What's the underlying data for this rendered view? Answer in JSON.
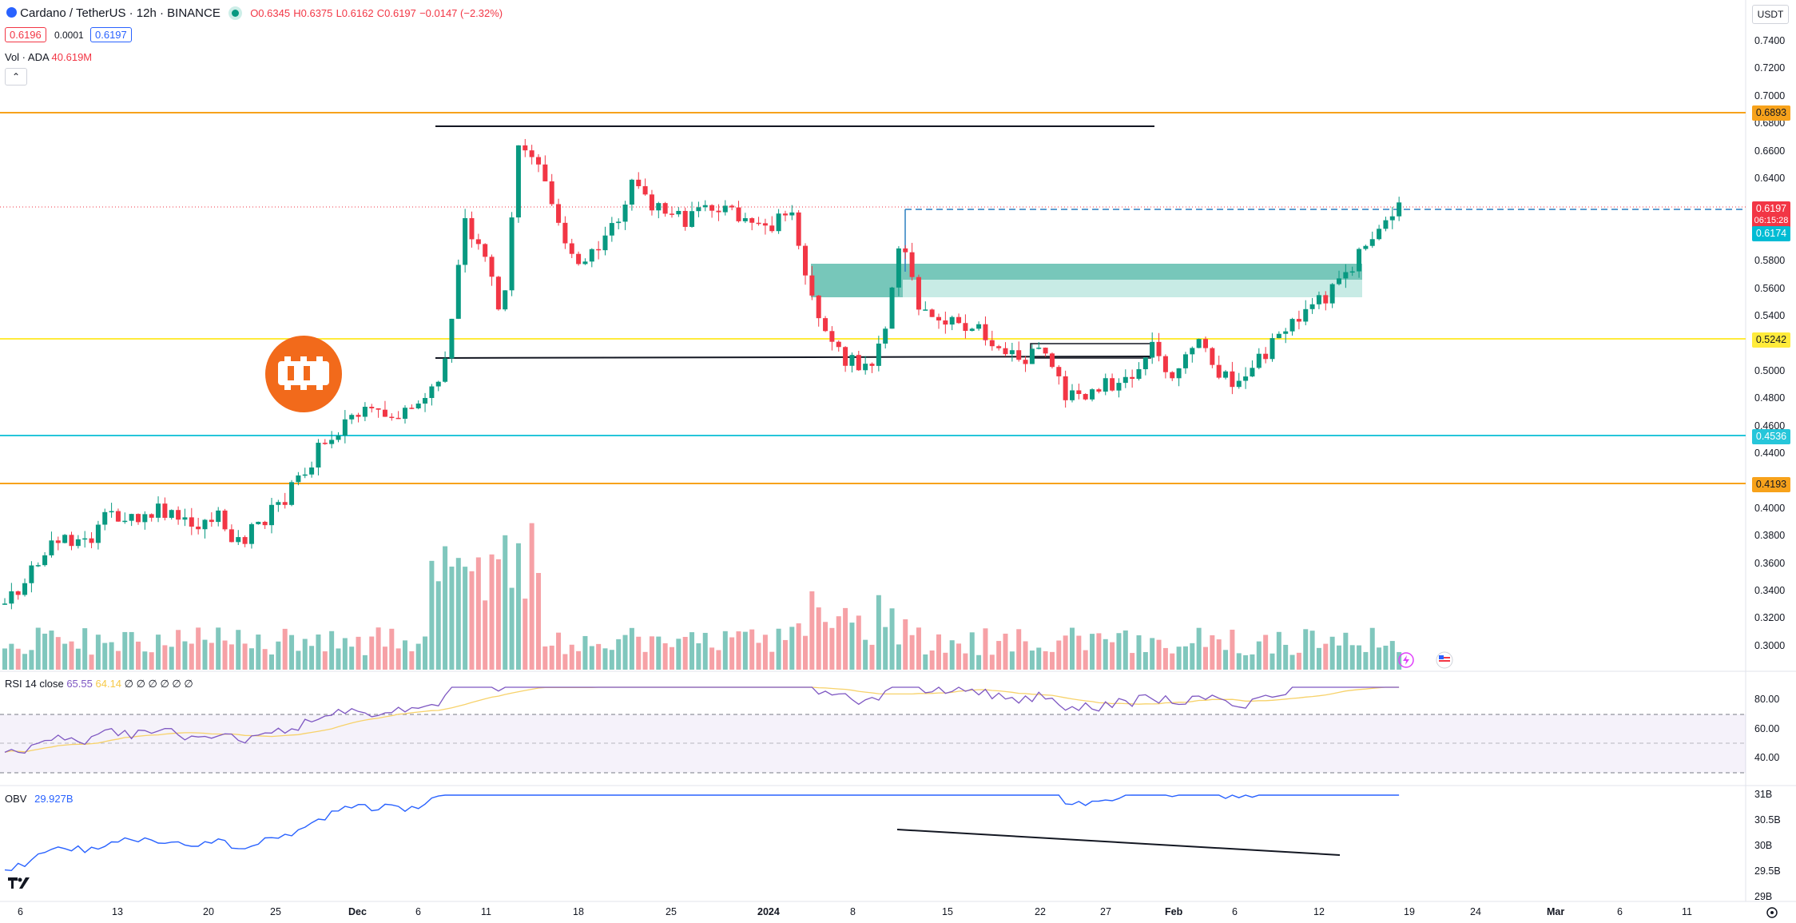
{
  "header": {
    "symbol": "Cardano / TetherUS · 12h · BINANCE",
    "o": "O0.6345",
    "h": "H0.6375",
    "l": "L0.6162",
    "c": "C0.6197",
    "change": "−0.0147 (−2.32%)",
    "bid": "0.6196",
    "spread": "0.0001",
    "ask": "0.6197",
    "vol_label": "Vol · ADA",
    "vol_value": "40.619M",
    "currency": "USDT"
  },
  "price_axis": {
    "ticks": [
      "0.7400",
      "0.7200",
      "0.7000",
      "0.6800",
      "0.6600",
      "0.6400",
      "0.5800",
      "0.5600",
      "0.5400",
      "0.5000",
      "0.4800",
      "0.4600",
      "0.4400",
      "0.4000",
      "0.3800",
      "0.3600",
      "0.3400",
      "0.3200",
      "0.3000"
    ],
    "levels": [
      {
        "value": "0.6893",
        "color": "#f7a21b",
        "text": "#131722"
      },
      {
        "value": "0.6197",
        "color": "#f23645",
        "text": "#ffffff",
        "countdown": "06:15:28"
      },
      {
        "value": "0.6174",
        "color": "#00bcd4",
        "text": "#ffffff"
      },
      {
        "value": "0.5242",
        "color": "#ffeb3b",
        "text": "#131722"
      },
      {
        "value": "0.4536",
        "color": "#26c6da",
        "text": "#ffffff"
      },
      {
        "value": "0.4193",
        "color": "#f7a21b",
        "text": "#131722"
      }
    ]
  },
  "rsi": {
    "label": "RSI 14 close",
    "value": "65.55",
    "ma": "64.14",
    "extra": "∅ ∅ ∅ ∅ ∅ ∅",
    "ticks": [
      "80.00",
      "60.00",
      "40.00"
    ]
  },
  "obv": {
    "label": "OBV",
    "value": "29.927B",
    "ticks": [
      "31B",
      "30.5B",
      "30B",
      "29.5B",
      "29B"
    ]
  },
  "time_axis": [
    "6",
    "13",
    "20",
    "25",
    "Dec",
    "6",
    "11",
    "18",
    "25",
    "2024",
    "8",
    "15",
    "22",
    "27",
    "Feb",
    "6",
    "12",
    "19",
    "24",
    "Mar",
    "6",
    "11"
  ],
  "colors": {
    "up": "#089981",
    "down": "#f23645",
    "up_vol": "#80c7bd",
    "down_vol": "#f6a1a6",
    "rsi": "#7e57c2",
    "obv": "#2962ff"
  },
  "icons": [
    "logo-icon",
    "live-icon",
    "collapse-icon",
    "flash-icon",
    "flag-icon",
    "tradingview-logo-icon",
    "settings-icon"
  ]
}
